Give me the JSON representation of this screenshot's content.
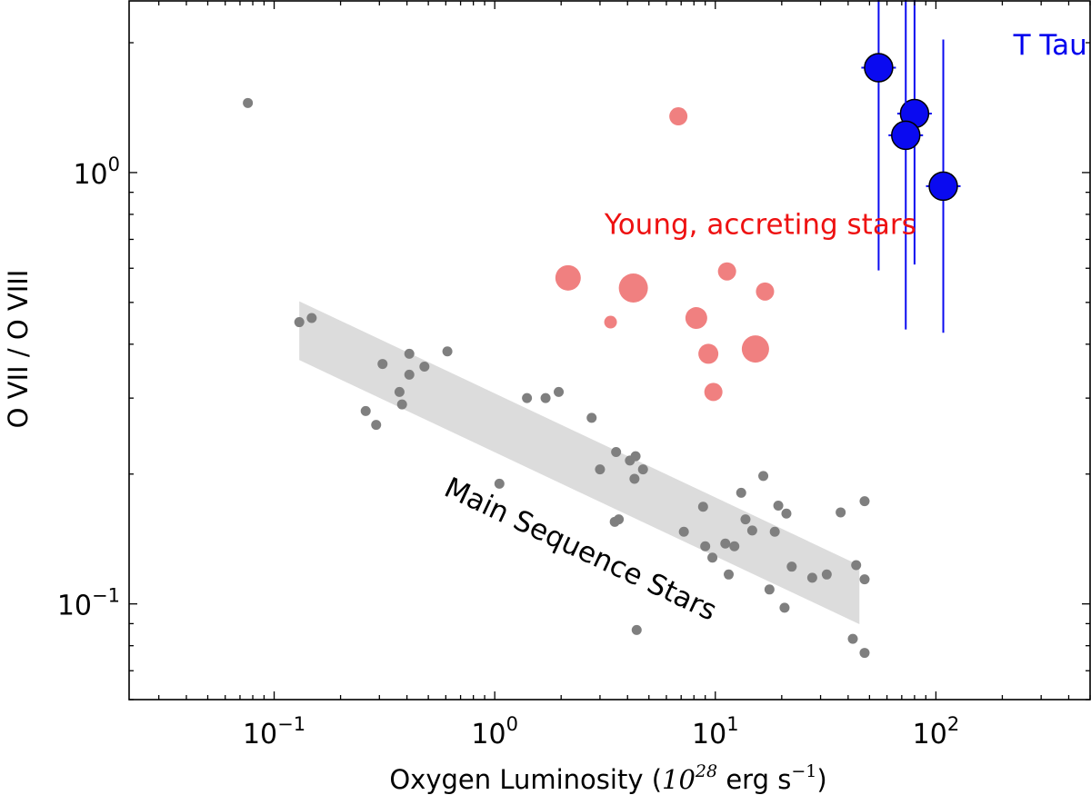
{
  "chart_data": {
    "type": "scatter",
    "xscale": "log",
    "yscale": "log",
    "xlim": [
      0.022,
      500
    ],
    "ylim": [
      0.06,
      2.5
    ],
    "xlabel": "Oxygen Luminosity (10^28 erg s^-1)",
    "xlabel_parts": {
      "prefix": "Oxygen Luminosity (",
      "base": "10",
      "exp": "28",
      "unit": " erg s",
      "unit_exp": "−1",
      "suffix": ")"
    },
    "ylabel": "O VII / O VIII",
    "x_ticks": [
      {
        "value": 0.1,
        "base": "10",
        "exp": "-1"
      },
      {
        "value": 1,
        "base": "10",
        "exp": "0"
      },
      {
        "value": 10,
        "base": "10",
        "exp": "1"
      },
      {
        "value": 100,
        "base": "10",
        "exp": "2"
      }
    ],
    "y_ticks": [
      {
        "value": 0.1,
        "base": "10",
        "exp": "-1"
      },
      {
        "value": 1,
        "base": "10",
        "exp": "0"
      }
    ],
    "main_sequence_band": {
      "label": "Main Sequence Stars",
      "from": [
        0.13,
        0.43
      ],
      "to": [
        45,
        0.105
      ],
      "half_width_factor": 1.17,
      "color": "#dcdcdc"
    },
    "series": [
      {
        "name": "Main Sequence Stars",
        "color": "#7f7f7f",
        "points": [
          [
            0.076,
            1.45
          ],
          [
            0.13,
            0.45
          ],
          [
            0.148,
            0.46
          ],
          [
            0.26,
            0.28
          ],
          [
            0.29,
            0.26
          ],
          [
            0.31,
            0.36
          ],
          [
            0.37,
            0.31
          ],
          [
            0.38,
            0.29
          ],
          [
            0.41,
            0.38
          ],
          [
            0.41,
            0.34
          ],
          [
            0.48,
            0.355
          ],
          [
            0.61,
            0.385
          ],
          [
            1.05,
            0.19
          ],
          [
            1.4,
            0.3
          ],
          [
            1.7,
            0.3
          ],
          [
            1.95,
            0.31
          ],
          [
            2.75,
            0.27
          ],
          [
            3.0,
            0.205
          ],
          [
            3.55,
            0.225
          ],
          [
            3.5,
            0.155
          ],
          [
            3.65,
            0.157
          ],
          [
            4.1,
            0.215
          ],
          [
            4.35,
            0.22
          ],
          [
            4.3,
            0.195
          ],
          [
            4.7,
            0.205
          ],
          [
            4.4,
            0.087
          ],
          [
            7.2,
            0.147
          ],
          [
            8.8,
            0.168
          ],
          [
            9.0,
            0.136
          ],
          [
            9.7,
            0.128
          ],
          [
            11.1,
            0.138
          ],
          [
            11.5,
            0.117
          ],
          [
            12.2,
            0.136
          ],
          [
            13.1,
            0.181
          ],
          [
            13.7,
            0.157
          ],
          [
            14.7,
            0.148
          ],
          [
            16.5,
            0.198
          ],
          [
            17.6,
            0.108
          ],
          [
            18.6,
            0.147
          ],
          [
            19.3,
            0.169
          ],
          [
            20.6,
            0.098
          ],
          [
            21.0,
            0.162
          ],
          [
            22.2,
            0.122
          ],
          [
            27.5,
            0.115
          ],
          [
            32.0,
            0.117
          ],
          [
            37.0,
            0.163
          ],
          [
            42.0,
            0.083
          ],
          [
            43.5,
            0.123
          ],
          [
            47.5,
            0.114
          ],
          [
            47.5,
            0.077
          ],
          [
            47.5,
            0.173
          ]
        ]
      },
      {
        "name": "Young, accreting stars",
        "color": "#f08080",
        "points": [
          [
            6.8,
            1.35,
            10
          ],
          [
            2.15,
            0.57,
            14
          ],
          [
            4.25,
            0.54,
            16
          ],
          [
            3.35,
            0.45,
            7
          ],
          [
            11.3,
            0.59,
            10
          ],
          [
            16.8,
            0.53,
            10
          ],
          [
            8.2,
            0.46,
            12
          ],
          [
            9.3,
            0.38,
            11
          ],
          [
            15.2,
            0.39,
            15
          ],
          [
            9.8,
            0.31,
            10
          ]
        ]
      },
      {
        "name": "T Tau",
        "color": "#0a0af0",
        "points": [
          [
            55,
            1.75,
            0.47
          ],
          [
            80,
            1.37,
            0.35
          ],
          [
            73,
            1.22,
            0.45
          ],
          [
            108,
            0.93,
            0.34
          ]
        ]
      }
    ],
    "annotations": [
      {
        "text": "T Tau",
        "color": "#0000ee",
        "x": 330,
        "y": 1.88
      },
      {
        "text": "Young, accreting stars",
        "color": "#ee1111",
        "x": 16,
        "y": 0.72
      },
      {
        "text": "Main Sequence Stars",
        "color": "#000000",
        "x": 2.35,
        "y": 0.128,
        "angle": -0.57
      }
    ]
  }
}
